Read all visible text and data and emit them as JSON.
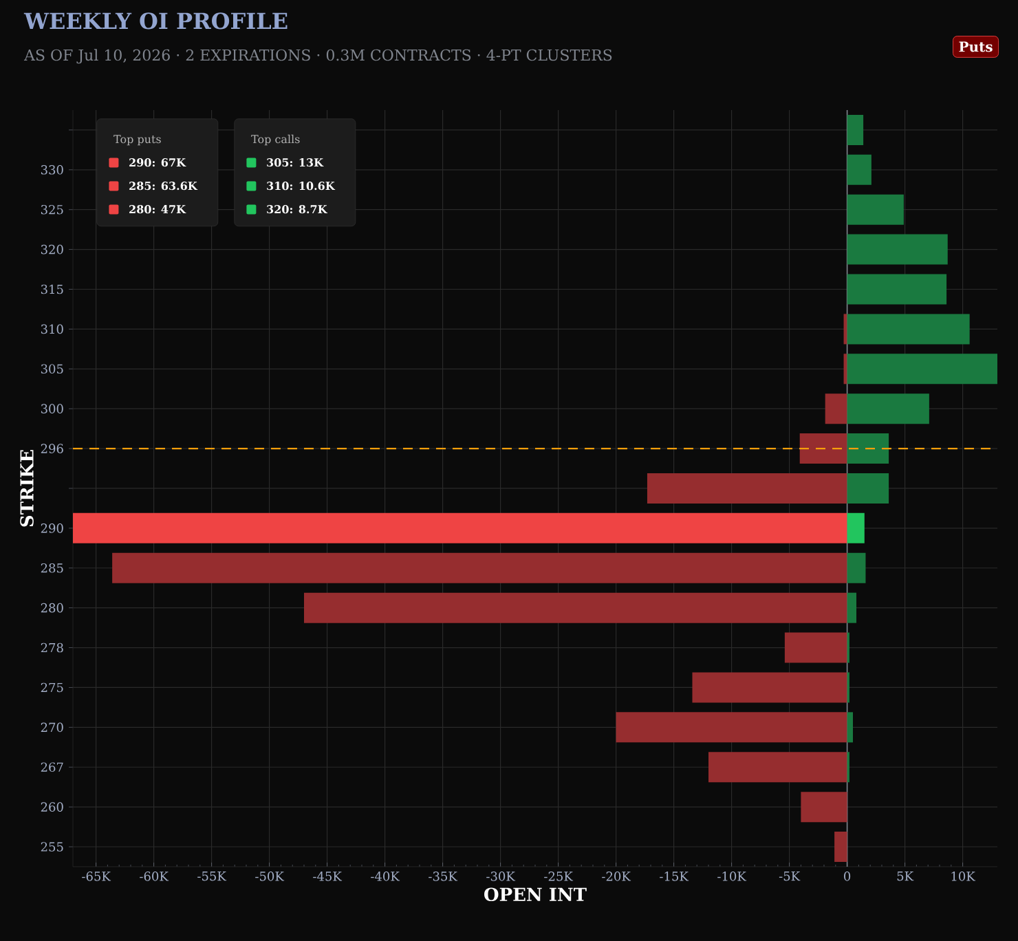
{
  "chart_data": {
    "type": "bar",
    "orientation": "horizontal",
    "title": "WEEKLY OI PROFILE",
    "subtitle": "AS OF Jul 10, 2026 · 2 EXPIRATIONS · 0.3M CONTRACTS · 4-PT CLUSTERS",
    "xlabel": "OPEN INT",
    "ylabel": "STRIKE",
    "categories": [
      null,
      "330",
      "325",
      "320",
      "315",
      "310",
      "305",
      "300",
      "296",
      null,
      "290",
      "285",
      "280",
      "278",
      "275",
      "270",
      "267",
      "260",
      "255"
    ],
    "series": [
      {
        "colors": [
          "#962d2f",
          "#962d2f",
          "#962d2f",
          "#962d2f",
          "#962d2f",
          "#962d2f",
          "#962d2f",
          "#962d2f",
          "#962d2f",
          "#962d2f",
          "#ef4444",
          "#962d2f",
          "#962d2f",
          "#962d2f",
          "#962d2f",
          "#962d2f",
          "#962d2f",
          "#962d2f",
          "#962d2f"
        ],
        "values": [
          0,
          0,
          0,
          0,
          0,
          -300,
          -300,
          -1900,
          -4100,
          -17300,
          -67000,
          -63600,
          -47000,
          -5400,
          -13400,
          -20000,
          -12000,
          -4000,
          -1100
        ]
      },
      {
        "colors": [
          "#1a7a40",
          "#1a7a40",
          "#1a7a40",
          "#1a7a40",
          "#1a7a40",
          "#1a7a40",
          "#1a7a40",
          "#1a7a40",
          "#1a7a40",
          "#1a7a40",
          "#22c55e",
          "#1a7a40",
          "#1a7a40",
          "#1a7a40",
          "#1a7a40",
          "#1a7a40",
          "#1a7a40",
          "#1a7a40",
          "#1a7a40"
        ],
        "values": [
          1400,
          2100,
          4900,
          8700,
          8600,
          10600,
          13000,
          7100,
          3600,
          3600,
          1500,
          1600,
          800,
          200,
          200,
          500,
          200,
          0,
          0
        ]
      }
    ],
    "xlim": [
      -67000,
      13000
    ],
    "xticks": [
      {
        "value": -65000,
        "label": "-65K"
      },
      {
        "value": -60000,
        "label": "-60K"
      },
      {
        "value": -55000,
        "label": "-55K"
      },
      {
        "value": -50000,
        "label": "-50K"
      },
      {
        "value": -45000,
        "label": "-45K"
      },
      {
        "value": -40000,
        "label": "-40K"
      },
      {
        "value": -35000,
        "label": "-35K"
      },
      {
        "value": -30000,
        "label": "-30K"
      },
      {
        "value": -25000,
        "label": "-25K"
      },
      {
        "value": -20000,
        "label": "-20K"
      },
      {
        "value": -15000,
        "label": "-15K"
      },
      {
        "value": -10000,
        "label": "-10K"
      },
      {
        "value": -5000,
        "label": "-5K"
      },
      0,
      {
        "value": 5000,
        "label": "5K"
      },
      {
        "value": 10000,
        "label": "10K"
      }
    ],
    "ref_lines": [
      {
        "axis": "y",
        "value": "296",
        "color": "#f59e0b",
        "line_style": "dashed"
      }
    ],
    "grid": true,
    "annotations": [
      "Puts",
      "Top puts",
      "290: 67K",
      "285: 63.6K",
      "280: 47K",
      "Top calls",
      "305: 13K",
      "310: 10.6K",
      "320: 8.7K"
    ]
  }
}
